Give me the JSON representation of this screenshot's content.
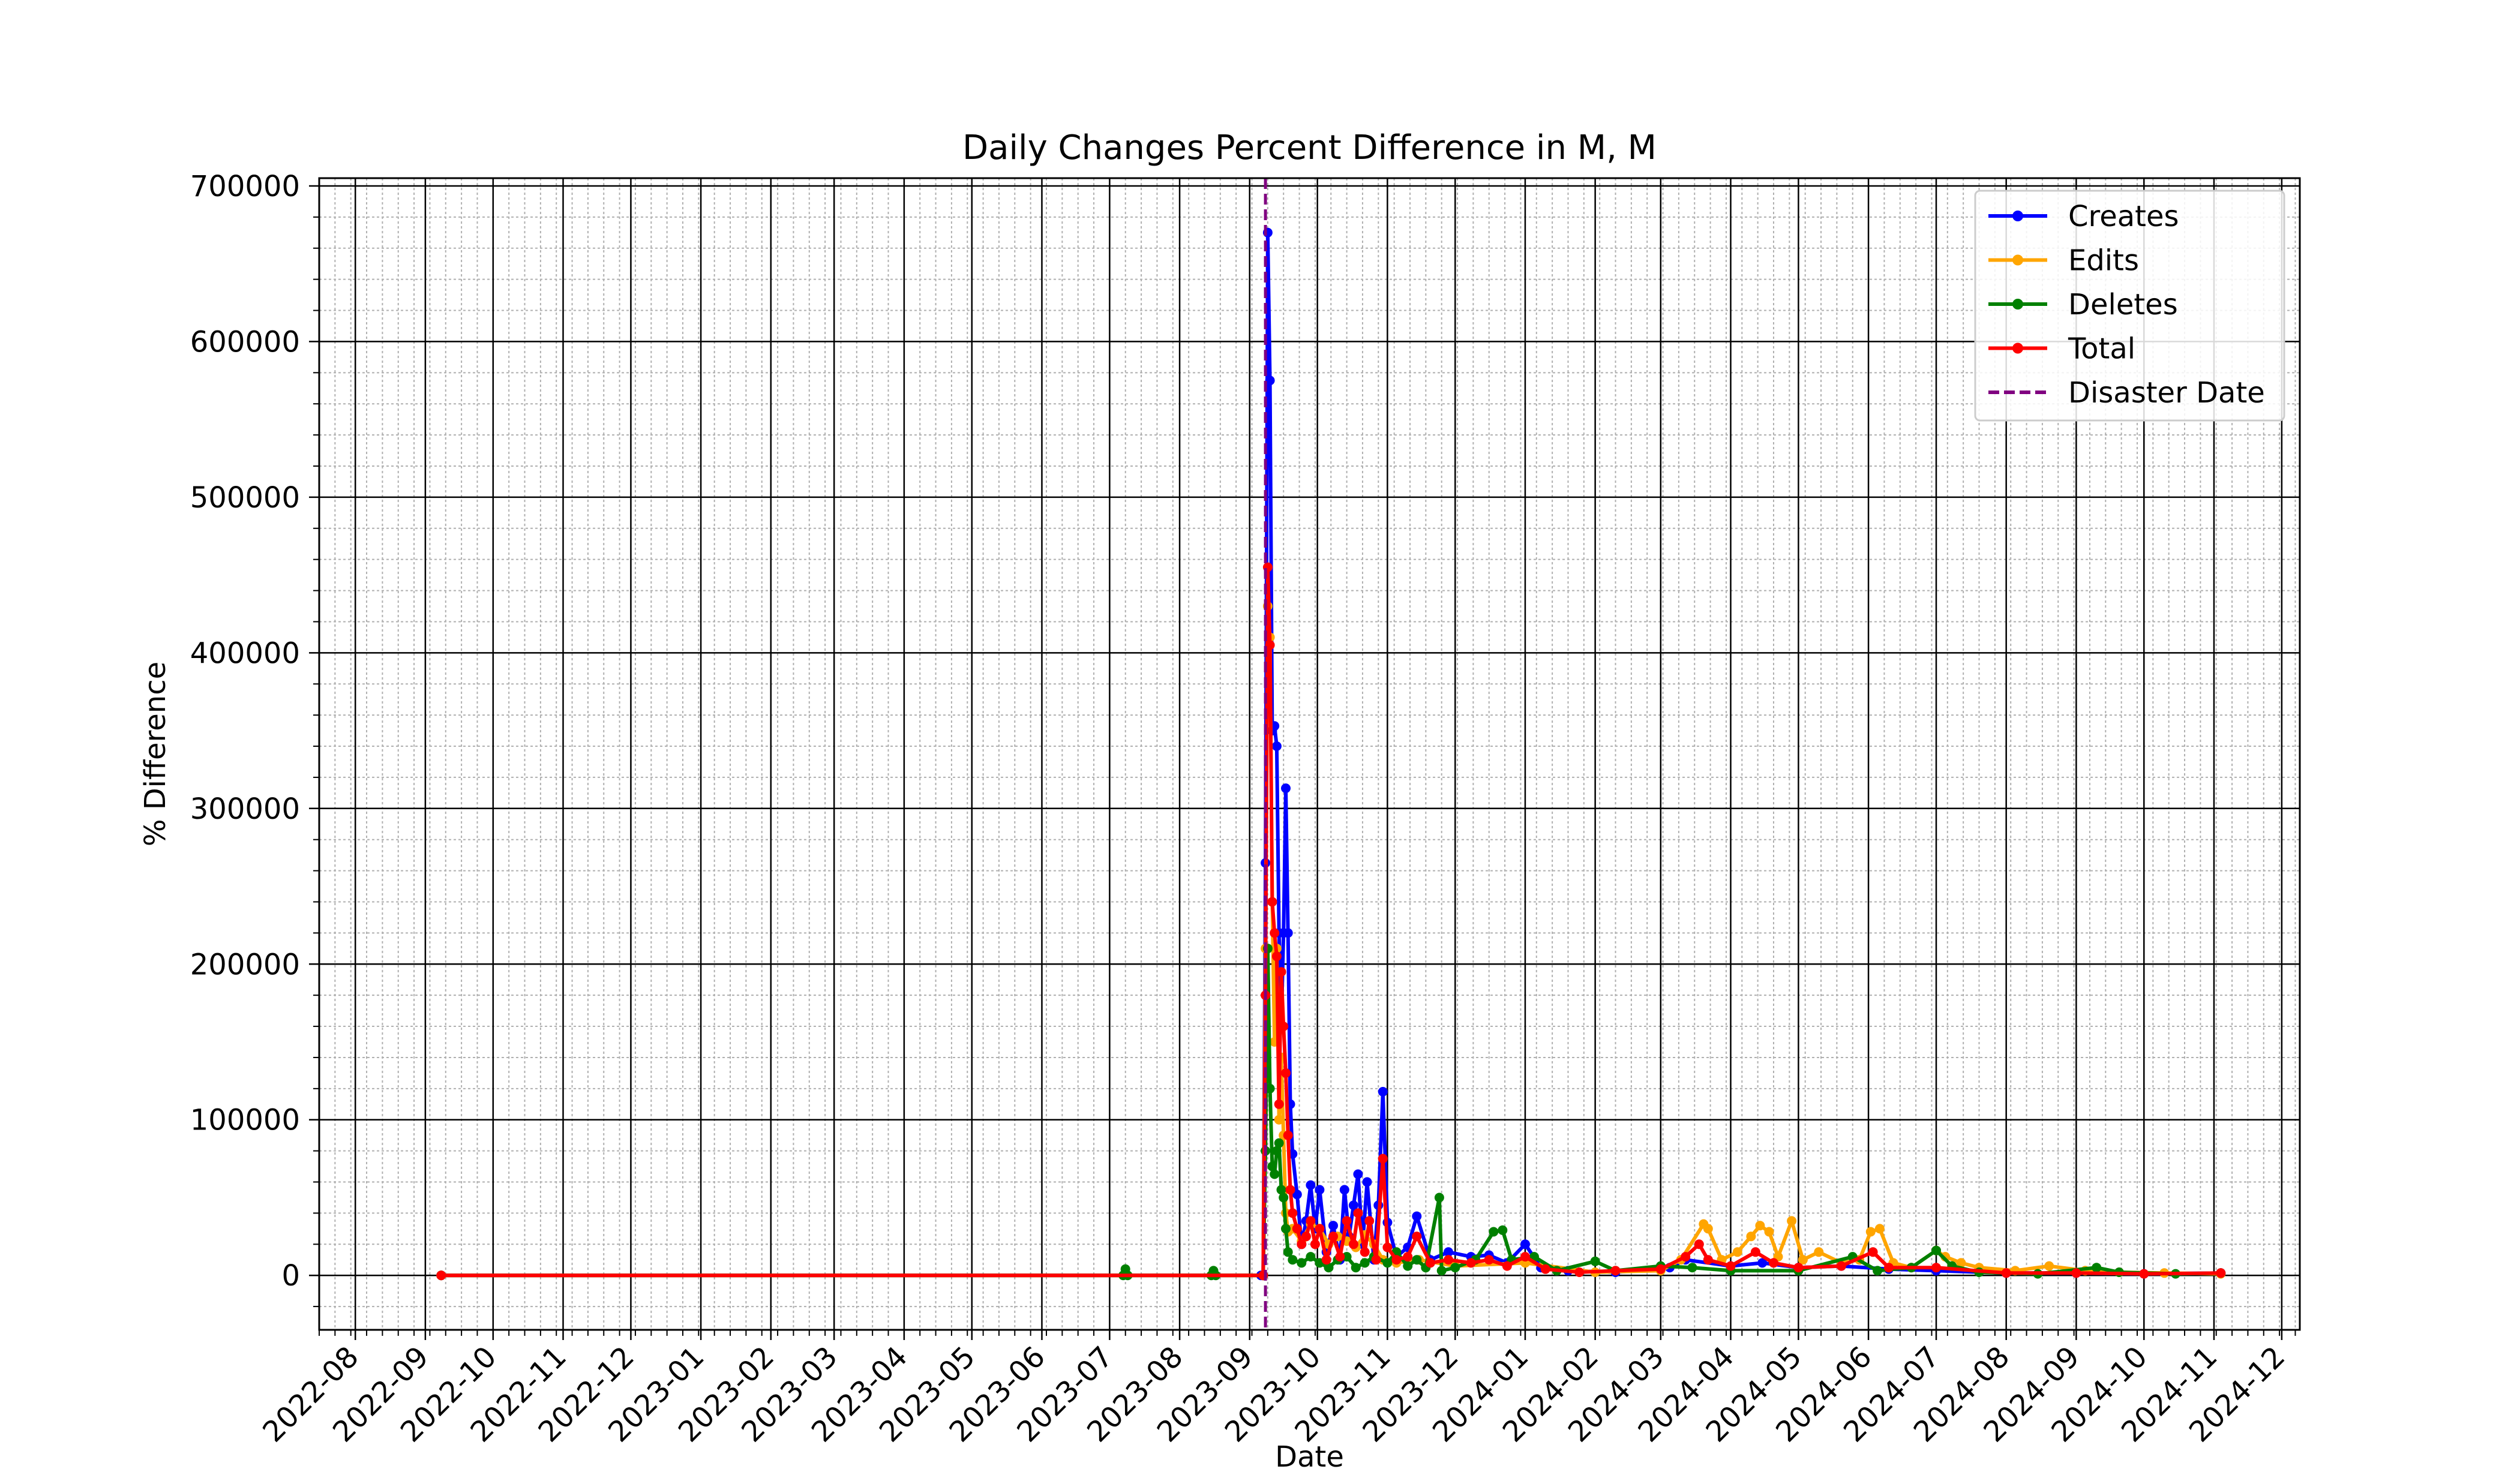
{
  "chart_data": {
    "type": "line",
    "title": "Daily Changes Percent Difference in M, M",
    "xlabel": "Date",
    "ylabel": "% Difference",
    "xlim": [
      "2022-07-16",
      "2024-12-09"
    ],
    "ylim": [
      -35000,
      705000
    ],
    "x_ticks": [
      "2022-08",
      "2022-09",
      "2022-10",
      "2022-11",
      "2022-12",
      "2023-01",
      "2023-02",
      "2023-03",
      "2023-04",
      "2023-05",
      "2023-06",
      "2023-07",
      "2023-08",
      "2023-09",
      "2023-10",
      "2023-11",
      "2023-12",
      "2024-01",
      "2024-02",
      "2024-03",
      "2024-04",
      "2024-05",
      "2024-06",
      "2024-07",
      "2024-08",
      "2024-09",
      "2024-10",
      "2024-11",
      "2024-12"
    ],
    "y_ticks": [
      0,
      100000,
      200000,
      300000,
      400000,
      500000,
      600000,
      700000
    ],
    "grid": "major and minor",
    "legend_position": "upper right",
    "disaster_date": {
      "label": "Disaster Date",
      "x": "2023-09-08",
      "color": "#800080"
    },
    "series": [
      {
        "name": "Creates",
        "color": "#0000ff",
        "points": [
          [
            "2022-09-08",
            0
          ],
          [
            "2023-09-06",
            0
          ],
          [
            "2023-09-07",
            0
          ],
          [
            "2023-09-08",
            265000
          ],
          [
            "2023-09-09",
            670000
          ],
          [
            "2023-09-10",
            575000
          ],
          [
            "2023-09-11",
            350000
          ],
          [
            "2023-09-12",
            353000
          ],
          [
            "2023-09-13",
            340000
          ],
          [
            "2023-09-14",
            220000
          ],
          [
            "2023-09-15",
            160000
          ],
          [
            "2023-09-16",
            220000
          ],
          [
            "2023-09-17",
            313000
          ],
          [
            "2023-09-18",
            220000
          ],
          [
            "2023-09-19",
            110000
          ],
          [
            "2023-09-20",
            78000
          ],
          [
            "2023-09-22",
            52000
          ],
          [
            "2023-09-24",
            20000
          ],
          [
            "2023-09-26",
            35000
          ],
          [
            "2023-09-28",
            58000
          ],
          [
            "2023-09-30",
            30000
          ],
          [
            "2023-10-02",
            55000
          ],
          [
            "2023-10-05",
            15000
          ],
          [
            "2023-10-08",
            32000
          ],
          [
            "2023-10-11",
            10000
          ],
          [
            "2023-10-13",
            55000
          ],
          [
            "2023-10-15",
            25000
          ],
          [
            "2023-10-17",
            45000
          ],
          [
            "2023-10-19",
            65000
          ],
          [
            "2023-10-21",
            20000
          ],
          [
            "2023-10-23",
            60000
          ],
          [
            "2023-10-26",
            10000
          ],
          [
            "2023-10-28",
            45000
          ],
          [
            "2023-10-30",
            118000
          ],
          [
            "2023-11-01",
            34000
          ],
          [
            "2023-11-05",
            12000
          ],
          [
            "2023-11-10",
            18000
          ],
          [
            "2023-11-14",
            38000
          ],
          [
            "2023-11-20",
            10000
          ],
          [
            "2023-11-28",
            15000
          ],
          [
            "2023-12-08",
            12000
          ],
          [
            "2023-12-16",
            13000
          ],
          [
            "2023-12-24",
            8000
          ],
          [
            "2024-01-01",
            20000
          ],
          [
            "2024-01-08",
            5000
          ],
          [
            "2024-01-20",
            3000
          ],
          [
            "2024-02-10",
            2000
          ],
          [
            "2024-03-05",
            5000
          ],
          [
            "2024-03-12",
            10000
          ],
          [
            "2024-04-01",
            6000
          ],
          [
            "2024-04-15",
            8000
          ],
          [
            "2024-05-01",
            5000
          ],
          [
            "2024-05-20",
            6000
          ],
          [
            "2024-06-10",
            4000
          ],
          [
            "2024-07-01",
            3000
          ],
          [
            "2024-08-01",
            1500
          ],
          [
            "2024-09-01",
            1500
          ],
          [
            "2024-10-01",
            1000
          ],
          [
            "2024-11-04",
            1500
          ]
        ]
      },
      {
        "name": "Edits",
        "color": "#ffa500",
        "points": [
          [
            "2022-09-08",
            0
          ],
          [
            "2023-09-07",
            0
          ],
          [
            "2023-09-08",
            210000
          ],
          [
            "2023-09-09",
            430000
          ],
          [
            "2023-09-10",
            410000
          ],
          [
            "2023-09-11",
            240000
          ],
          [
            "2023-09-12",
            150000
          ],
          [
            "2023-09-13",
            210000
          ],
          [
            "2023-09-14",
            100000
          ],
          [
            "2023-09-15",
            140000
          ],
          [
            "2023-09-16",
            90000
          ],
          [
            "2023-09-17",
            40000
          ],
          [
            "2023-09-18",
            28000
          ],
          [
            "2023-09-20",
            30000
          ],
          [
            "2023-09-24",
            22000
          ],
          [
            "2023-09-28",
            33000
          ],
          [
            "2023-10-02",
            30000
          ],
          [
            "2023-10-06",
            20000
          ],
          [
            "2023-10-10",
            25000
          ],
          [
            "2023-10-14",
            22000
          ],
          [
            "2023-10-18",
            18000
          ],
          [
            "2023-10-22",
            26000
          ],
          [
            "2023-10-26",
            20000
          ],
          [
            "2023-10-30",
            10000
          ],
          [
            "2023-11-05",
            8000
          ],
          [
            "2023-11-15",
            10000
          ],
          [
            "2023-12-01",
            6000
          ],
          [
            "2024-01-01",
            8000
          ],
          [
            "2024-02-01",
            2000
          ],
          [
            "2024-03-01",
            3000
          ],
          [
            "2024-03-10",
            10000
          ],
          [
            "2024-03-20",
            33000
          ],
          [
            "2024-03-22",
            30000
          ],
          [
            "2024-03-28",
            10000
          ],
          [
            "2024-04-04",
            15000
          ],
          [
            "2024-04-10",
            25000
          ],
          [
            "2024-04-14",
            32000
          ],
          [
            "2024-04-18",
            28000
          ],
          [
            "2024-04-22",
            12000
          ],
          [
            "2024-04-28",
            35000
          ],
          [
            "2024-05-03",
            10000
          ],
          [
            "2024-05-10",
            15000
          ],
          [
            "2024-05-20",
            8000
          ],
          [
            "2024-05-28",
            10000
          ],
          [
            "2024-06-02",
            28000
          ],
          [
            "2024-06-06",
            30000
          ],
          [
            "2024-06-12",
            8000
          ],
          [
            "2024-06-20",
            5000
          ],
          [
            "2024-07-01",
            16000
          ],
          [
            "2024-07-05",
            12000
          ],
          [
            "2024-07-12",
            8000
          ],
          [
            "2024-07-20",
            5000
          ],
          [
            "2024-08-05",
            3000
          ],
          [
            "2024-08-20",
            6000
          ],
          [
            "2024-09-05",
            3000
          ],
          [
            "2024-09-20",
            2000
          ],
          [
            "2024-10-10",
            1500
          ],
          [
            "2024-11-04",
            1000
          ]
        ]
      },
      {
        "name": "Deletes",
        "color": "#008000",
        "points": [
          [
            "2022-09-08",
            0
          ],
          [
            "2023-07-07",
            0
          ],
          [
            "2023-07-08",
            4000
          ],
          [
            "2023-07-09",
            0
          ],
          [
            "2023-08-15",
            0
          ],
          [
            "2023-08-16",
            3000
          ],
          [
            "2023-08-17",
            0
          ],
          [
            "2023-09-07",
            0
          ],
          [
            "2023-09-08",
            80000
          ],
          [
            "2023-09-09",
            210000
          ],
          [
            "2023-09-10",
            120000
          ],
          [
            "2023-09-11",
            70000
          ],
          [
            "2023-09-12",
            65000
          ],
          [
            "2023-09-13",
            80000
          ],
          [
            "2023-09-14",
            85000
          ],
          [
            "2023-09-15",
            55000
          ],
          [
            "2023-09-16",
            50000
          ],
          [
            "2023-09-17",
            30000
          ],
          [
            "2023-09-18",
            15000
          ],
          [
            "2023-09-20",
            10000
          ],
          [
            "2023-09-24",
            8000
          ],
          [
            "2023-09-28",
            12000
          ],
          [
            "2023-10-02",
            8000
          ],
          [
            "2023-10-06",
            5000
          ],
          [
            "2023-10-10",
            10000
          ],
          [
            "2023-10-14",
            12000
          ],
          [
            "2023-10-18",
            5000
          ],
          [
            "2023-10-22",
            8000
          ],
          [
            "2023-10-26",
            12000
          ],
          [
            "2023-11-01",
            8000
          ],
          [
            "2023-11-05",
            15000
          ],
          [
            "2023-11-10",
            6000
          ],
          [
            "2023-11-14",
            10000
          ],
          [
            "2023-11-18",
            5000
          ],
          [
            "2023-11-24",
            50000
          ],
          [
            "2023-11-25",
            3000
          ],
          [
            "2023-12-01",
            5000
          ],
          [
            "2023-12-10",
            10000
          ],
          [
            "2023-12-18",
            28000
          ],
          [
            "2023-12-22",
            29000
          ],
          [
            "2023-12-26",
            10000
          ],
          [
            "2024-01-05",
            12000
          ],
          [
            "2024-01-15",
            3000
          ],
          [
            "2024-02-01",
            9000
          ],
          [
            "2024-02-10",
            3000
          ],
          [
            "2024-03-01",
            6000
          ],
          [
            "2024-03-15",
            5000
          ],
          [
            "2024-04-01",
            3000
          ],
          [
            "2024-05-01",
            3000
          ],
          [
            "2024-05-25",
            12000
          ],
          [
            "2024-06-05",
            3000
          ],
          [
            "2024-06-20",
            5000
          ],
          [
            "2024-07-01",
            16000
          ],
          [
            "2024-07-08",
            6000
          ],
          [
            "2024-07-20",
            2000
          ],
          [
            "2024-08-15",
            1000
          ],
          [
            "2024-09-10",
            5000
          ],
          [
            "2024-09-20",
            2000
          ],
          [
            "2024-10-15",
            1000
          ],
          [
            "2024-11-04",
            1500
          ]
        ]
      },
      {
        "name": "Total",
        "color": "#ff0000",
        "points": [
          [
            "2022-09-08",
            0
          ],
          [
            "2023-09-07",
            0
          ],
          [
            "2023-09-08",
            180000
          ],
          [
            "2023-09-09",
            455000
          ],
          [
            "2023-09-10",
            405000
          ],
          [
            "2023-09-11",
            240000
          ],
          [
            "2023-09-12",
            220000
          ],
          [
            "2023-09-13",
            205000
          ],
          [
            "2023-09-14",
            110000
          ],
          [
            "2023-09-15",
            195000
          ],
          [
            "2023-09-16",
            160000
          ],
          [
            "2023-09-17",
            130000
          ],
          [
            "2023-09-18",
            90000
          ],
          [
            "2023-09-19",
            55000
          ],
          [
            "2023-09-20",
            40000
          ],
          [
            "2023-09-22",
            30000
          ],
          [
            "2023-09-24",
            20000
          ],
          [
            "2023-09-26",
            25000
          ],
          [
            "2023-09-28",
            35000
          ],
          [
            "2023-09-30",
            20000
          ],
          [
            "2023-10-02",
            30000
          ],
          [
            "2023-10-05",
            10000
          ],
          [
            "2023-10-08",
            25000
          ],
          [
            "2023-10-11",
            12000
          ],
          [
            "2023-10-14",
            35000
          ],
          [
            "2023-10-17",
            20000
          ],
          [
            "2023-10-19",
            40000
          ],
          [
            "2023-10-22",
            15000
          ],
          [
            "2023-10-24",
            35000
          ],
          [
            "2023-10-27",
            10000
          ],
          [
            "2023-10-30",
            75000
          ],
          [
            "2023-11-01",
            18000
          ],
          [
            "2023-11-05",
            10000
          ],
          [
            "2023-11-10",
            12000
          ],
          [
            "2023-11-14",
            25000
          ],
          [
            "2023-11-20",
            8000
          ],
          [
            "2023-11-28",
            10000
          ],
          [
            "2023-12-08",
            8000
          ],
          [
            "2023-12-16",
            10000
          ],
          [
            "2023-12-24",
            6000
          ],
          [
            "2024-01-01",
            12000
          ],
          [
            "2024-01-10",
            4000
          ],
          [
            "2024-01-25",
            2000
          ],
          [
            "2024-02-10",
            3000
          ],
          [
            "2024-03-01",
            4000
          ],
          [
            "2024-03-12",
            12000
          ],
          [
            "2024-03-18",
            20000
          ],
          [
            "2024-03-22",
            10000
          ],
          [
            "2024-04-01",
            6000
          ],
          [
            "2024-04-12",
            15000
          ],
          [
            "2024-04-20",
            8000
          ],
          [
            "2024-05-01",
            5000
          ],
          [
            "2024-05-20",
            6000
          ],
          [
            "2024-06-03",
            15000
          ],
          [
            "2024-06-10",
            5000
          ],
          [
            "2024-07-01",
            5000
          ],
          [
            "2024-08-01",
            1500
          ],
          [
            "2024-09-01",
            1500
          ],
          [
            "2024-10-01",
            1000
          ],
          [
            "2024-11-04",
            1500
          ]
        ]
      }
    ]
  }
}
